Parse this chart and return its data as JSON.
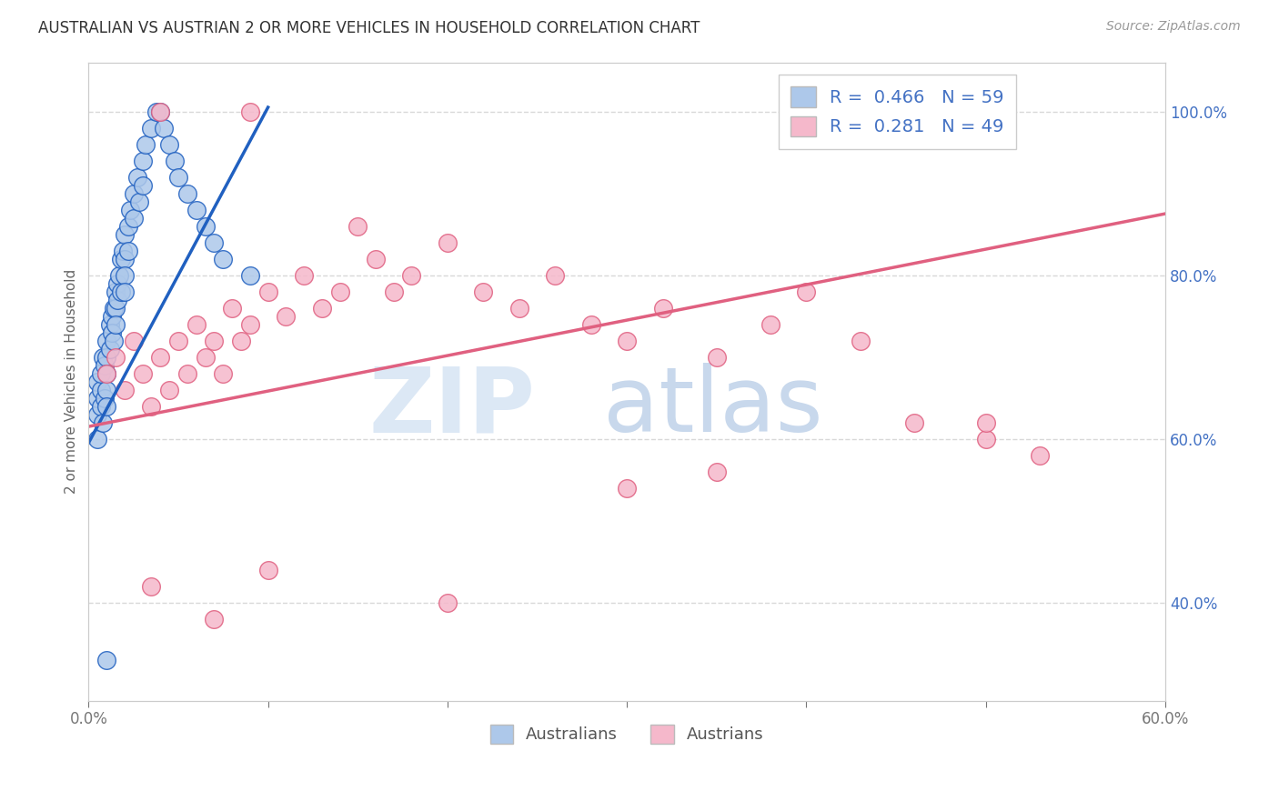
{
  "title": "AUSTRALIAN VS AUSTRIAN 2 OR MORE VEHICLES IN HOUSEHOLD CORRELATION CHART",
  "source": "Source: ZipAtlas.com",
  "ylabel": "2 or more Vehicles in Household",
  "xlim": [
    0.0,
    0.6
  ],
  "ylim": [
    0.28,
    1.06
  ],
  "yticks_right": [
    0.4,
    0.6,
    0.8,
    1.0
  ],
  "ytick_right_labels": [
    "40.0%",
    "60.0%",
    "80.0%",
    "100.0%"
  ],
  "legend_label1": "R =  0.466   N = 59",
  "legend_label2": "R =  0.281   N = 49",
  "legend_label_bottom1": "Australians",
  "legend_label_bottom2": "Austrians",
  "australian_color": "#adc8ea",
  "austrian_color": "#f5b8cb",
  "trendline1_color": "#2060c0",
  "trendline2_color": "#e06080",
  "watermark_color": "#dce8f5",
  "watermark_color2": "#c8d8ec",
  "background_color": "#ffffff",
  "grid_color": "#d8d8d8",
  "aus_x": [
    0.005,
    0.005,
    0.005,
    0.005,
    0.007,
    0.007,
    0.007,
    0.008,
    0.008,
    0.009,
    0.009,
    0.01,
    0.01,
    0.01,
    0.01,
    0.01,
    0.012,
    0.012,
    0.013,
    0.013,
    0.014,
    0.014,
    0.015,
    0.015,
    0.015,
    0.016,
    0.016,
    0.017,
    0.018,
    0.018,
    0.019,
    0.02,
    0.02,
    0.02,
    0.02,
    0.022,
    0.022,
    0.023,
    0.025,
    0.025,
    0.027,
    0.028,
    0.03,
    0.03,
    0.032,
    0.035,
    0.038,
    0.04,
    0.042,
    0.045,
    0.048,
    0.05,
    0.055,
    0.06,
    0.065,
    0.07,
    0.075,
    0.09,
    0.01
  ],
  "aus_y": [
    0.63,
    0.65,
    0.67,
    0.6,
    0.66,
    0.68,
    0.64,
    0.7,
    0.62,
    0.69,
    0.65,
    0.72,
    0.7,
    0.68,
    0.66,
    0.64,
    0.74,
    0.71,
    0.75,
    0.73,
    0.76,
    0.72,
    0.78,
    0.76,
    0.74,
    0.79,
    0.77,
    0.8,
    0.82,
    0.78,
    0.83,
    0.85,
    0.82,
    0.8,
    0.78,
    0.86,
    0.83,
    0.88,
    0.9,
    0.87,
    0.92,
    0.89,
    0.94,
    0.91,
    0.96,
    0.98,
    1.0,
    1.0,
    0.98,
    0.96,
    0.94,
    0.92,
    0.9,
    0.88,
    0.86,
    0.84,
    0.82,
    0.8,
    0.33
  ],
  "aut_x": [
    0.01,
    0.015,
    0.02,
    0.025,
    0.03,
    0.035,
    0.04,
    0.045,
    0.05,
    0.055,
    0.06,
    0.065,
    0.07,
    0.075,
    0.08,
    0.085,
    0.09,
    0.1,
    0.11,
    0.12,
    0.13,
    0.14,
    0.15,
    0.16,
    0.17,
    0.18,
    0.2,
    0.22,
    0.24,
    0.26,
    0.28,
    0.3,
    0.32,
    0.35,
    0.38,
    0.4,
    0.43,
    0.46,
    0.5,
    0.53,
    0.035,
    0.07,
    0.1,
    0.2,
    0.3,
    0.5,
    0.04,
    0.09,
    0.35
  ],
  "aut_y": [
    0.68,
    0.7,
    0.66,
    0.72,
    0.68,
    0.64,
    0.7,
    0.66,
    0.72,
    0.68,
    0.74,
    0.7,
    0.72,
    0.68,
    0.76,
    0.72,
    0.74,
    0.78,
    0.75,
    0.8,
    0.76,
    0.78,
    0.86,
    0.82,
    0.78,
    0.8,
    0.84,
    0.78,
    0.76,
    0.8,
    0.74,
    0.72,
    0.76,
    0.7,
    0.74,
    0.78,
    0.72,
    0.62,
    0.6,
    0.58,
    0.42,
    0.38,
    0.44,
    0.4,
    0.54,
    0.62,
    1.0,
    1.0,
    0.56
  ],
  "trendline1_x": [
    0.0,
    0.1
  ],
  "trendline1_y": [
    0.595,
    1.005
  ],
  "trendline2_x": [
    0.0,
    0.6
  ],
  "trendline2_y": [
    0.615,
    0.875
  ]
}
